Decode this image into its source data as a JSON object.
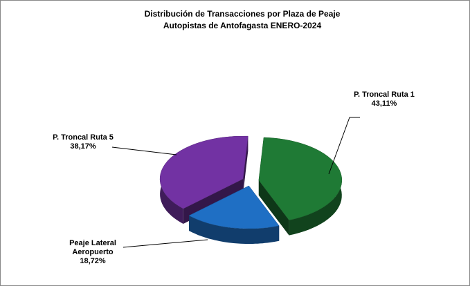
{
  "chart_data": {
    "type": "pie",
    "title": "Distribución de Transacciones por Plaza de Peaje",
    "subtitle": "Autopistas de Antofagasta ENERO-2024",
    "categories": [
      "P. Troncal Ruta 1",
      "Peaje Lateral Aeropuerto",
      "P. Troncal Ruta 5"
    ],
    "values": [
      43.11,
      18.72,
      38.17
    ],
    "value_labels": [
      "43,11%",
      "18,72%",
      "38,17%"
    ],
    "colors": [
      "#1f7a35",
      "#1f6fc4",
      "#7232a3"
    ]
  }
}
